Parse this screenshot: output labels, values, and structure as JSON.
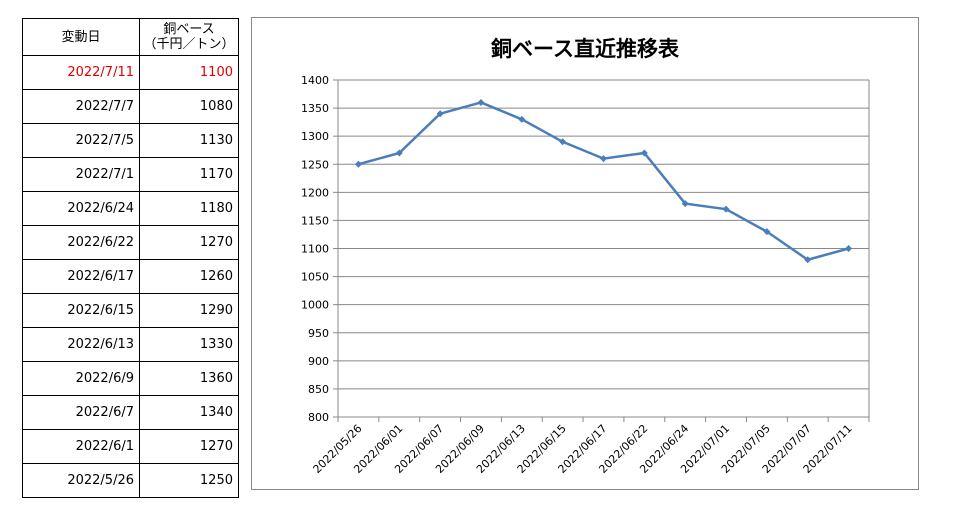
{
  "table": {
    "header_date": "変動日",
    "header_price_line1": "銅ベース",
    "header_price_line2": "（千円／トン）",
    "rows": [
      {
        "date": "2022/7/11",
        "price": "1100",
        "highlight": true
      },
      {
        "date": "2022/7/7",
        "price": "1080",
        "highlight": false
      },
      {
        "date": "2022/7/5",
        "price": "1130",
        "highlight": false
      },
      {
        "date": "2022/7/1",
        "price": "1170",
        "highlight": false
      },
      {
        "date": "2022/6/24",
        "price": "1180",
        "highlight": false
      },
      {
        "date": "2022/6/22",
        "price": "1270",
        "highlight": false
      },
      {
        "date": "2022/6/17",
        "price": "1260",
        "highlight": false
      },
      {
        "date": "2022/6/15",
        "price": "1290",
        "highlight": false
      },
      {
        "date": "2022/6/13",
        "price": "1330",
        "highlight": false
      },
      {
        "date": "2022/6/9",
        "price": "1360",
        "highlight": false
      },
      {
        "date": "2022/6/7",
        "price": "1340",
        "highlight": false
      },
      {
        "date": "2022/6/1",
        "price": "1270",
        "highlight": false
      },
      {
        "date": "2022/5/26",
        "price": "1250",
        "highlight": false
      }
    ],
    "highlight_color": "#e00000"
  },
  "chart_data": {
    "type": "line",
    "title": "銅ベース直近推移表",
    "xlabel": "",
    "ylabel": "",
    "categories": [
      "2022/05/26",
      "2022/06/01",
      "2022/06/07",
      "2022/06/09",
      "2022/06/13",
      "2022/06/15",
      "2022/06/17",
      "2022/06/22",
      "2022/06/24",
      "2022/07/01",
      "2022/07/05",
      "2022/07/07",
      "2022/07/11"
    ],
    "values": [
      1250,
      1270,
      1340,
      1360,
      1330,
      1290,
      1260,
      1270,
      1180,
      1170,
      1130,
      1080,
      1100
    ],
    "ylim": [
      800,
      1400
    ],
    "yticks": [
      800,
      850,
      900,
      950,
      1000,
      1050,
      1100,
      1150,
      1200,
      1250,
      1300,
      1350,
      1400
    ],
    "grid": true,
    "legend": "none",
    "line_color": "#4a7ebb"
  }
}
